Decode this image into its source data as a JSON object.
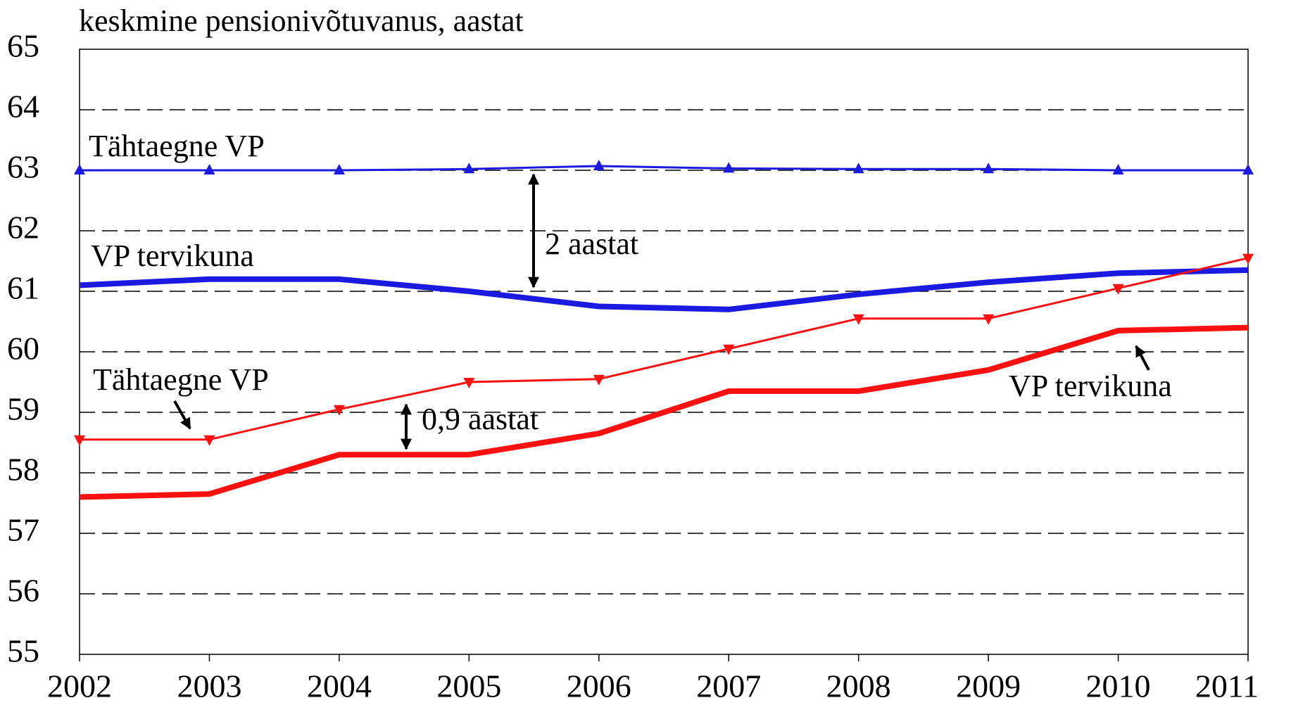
{
  "chart_data": {
    "type": "line",
    "title": "keskmine pensionivõtuvanus, aastat",
    "x": [
      2002,
      2003,
      2004,
      2005,
      2006,
      2007,
      2008,
      2009,
      2010,
      2011
    ],
    "xlim": [
      2002,
      2011
    ],
    "xticks": [
      2002,
      2003,
      2004,
      2005,
      2006,
      2007,
      2008,
      2009,
      2010,
      2011
    ],
    "ylim": [
      55,
      65
    ],
    "yticks": [
      55,
      56,
      57,
      58,
      59,
      60,
      61,
      62,
      63,
      64,
      65
    ],
    "grid": true,
    "series": [
      {
        "name": "Tähtaegne VP",
        "color": "#1a1ae0",
        "marker": "triangle-up",
        "values": [
          63.0,
          63.0,
          63.0,
          63.02,
          63.07,
          63.03,
          63.02,
          63.02,
          63.0,
          63.0
        ]
      },
      {
        "name": "VP tervikuna",
        "color": "#1a1ae0",
        "values": [
          61.1,
          61.2,
          61.2,
          61.0,
          60.75,
          60.7,
          60.95,
          61.15,
          61.3,
          61.35
        ]
      },
      {
        "name": "Tähtaegne VP",
        "color": "#ff1010",
        "marker": "triangle-down",
        "values": [
          58.55,
          58.55,
          59.05,
          59.5,
          59.55,
          60.05,
          60.55,
          60.55,
          61.05,
          61.55
        ]
      },
      {
        "name": "VP tervikuna",
        "color": "#ff1010",
        "values": [
          57.6,
          57.65,
          58.3,
          58.3,
          58.65,
          59.35,
          59.35,
          59.7,
          60.35,
          60.4
        ]
      }
    ],
    "annotations": [
      "2 aastat",
      "0,9 aastat"
    ]
  }
}
